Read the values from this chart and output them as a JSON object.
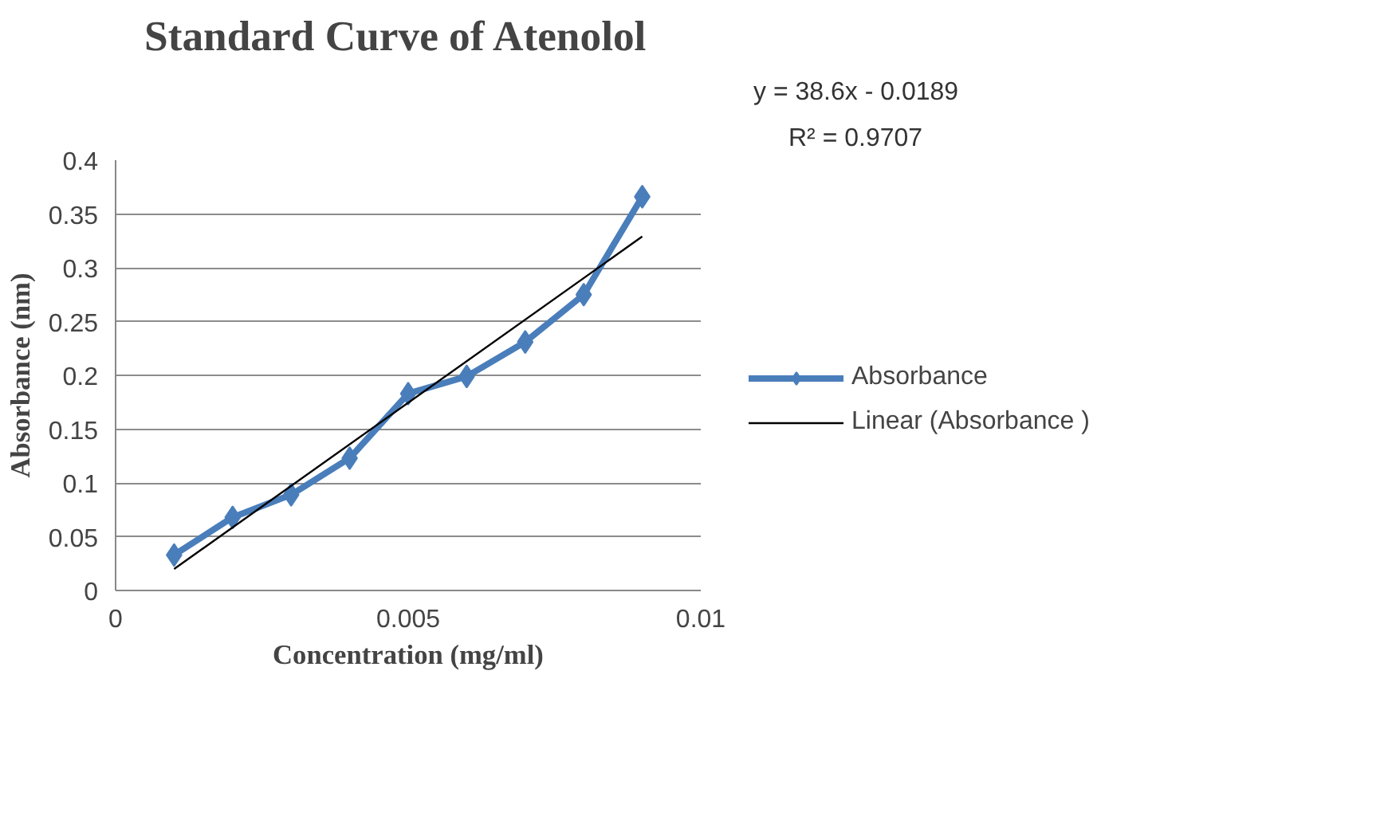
{
  "chart_data": {
    "type": "line",
    "title": "Standard Curve of Atenolol",
    "xlabel": "Concentration (mg/ml)",
    "ylabel": "Absorbance (nm)",
    "x": [
      0.001,
      0.002,
      0.003,
      0.004,
      0.005,
      0.006,
      0.007,
      0.008,
      0.009
    ],
    "series": [
      {
        "name": "Absorbance",
        "color": "#4a7ebb",
        "values": [
          0.033,
          0.068,
          0.089,
          0.123,
          0.183,
          0.199,
          0.231,
          0.275,
          0.366
        ],
        "marker": "diamond",
        "line_style": "solid"
      },
      {
        "name": "Linear (Absorbance )",
        "type": "line",
        "color": "#000000",
        "x": [
          0.001,
          0.009
        ],
        "values": [
          0.02,
          0.329
        ],
        "marker": "none",
        "line_style": "solid"
      }
    ],
    "annotations": [
      "y = 38.6x - 0.0189",
      "R² = 0.9707"
    ],
    "xlim": [
      0,
      0.01
    ],
    "xticks": [
      0,
      0.005,
      0.01
    ],
    "ylim": [
      0,
      0.4
    ],
    "yticks": [
      0,
      0.05,
      0.1,
      0.15,
      0.2,
      0.25,
      0.3,
      0.35,
      0.4
    ],
    "grid": "y",
    "legend": "right"
  }
}
